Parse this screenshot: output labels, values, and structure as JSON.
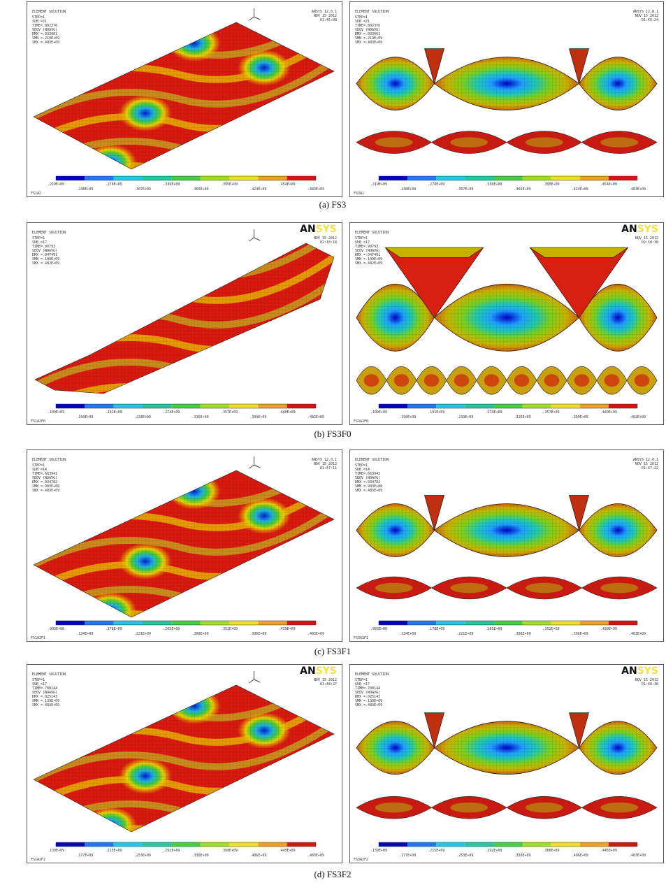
{
  "figure": {
    "rows": [
      {
        "caption": "(a) FS3",
        "panels": [
          {
            "title": "ELEMENT SOLUTION",
            "info": [
              "STEP=1",
              "SUB =21",
              "TIME=.802376",
              "SEQV (NOAVG)",
              "DMX =.033061",
              "SMN =.219E+09",
              "SMX =.483E+09"
            ],
            "stamp": [
              "ANSYS 12.0.1",
              "NOV 15 2012",
              "01:45:09"
            ],
            "footer": "FS1A2",
            "legend": [
              ".219E+09",
              ".248E+09",
              ".278E+09",
              ".307E+09",
              ".336E+09",
              ".366E+09",
              ".395E+09",
              ".424E+09",
              ".454E+09",
              ".483E+09"
            ]
          },
          {
            "title": "ELEMENT SOLUTION",
            "info": [
              "STEP=1",
              "SUB =21",
              "TIME=.802376",
              "SEQV (NOAVG)",
              "DMX =.033061",
              "SMN =.219E+09",
              "SMX =.483E+09"
            ],
            "stamp": [
              "ANSYS 12.0.1",
              "NOV 15 2012",
              "01:45:24"
            ],
            "footer": "FS3A2",
            "legend": [
              ".219E+09",
              ".248E+09",
              ".278E+09",
              ".307E+09",
              ".336E+09",
              ".366E+09",
              ".395E+09",
              ".424E+09",
              ".454E+09",
              ".483E+09"
            ]
          }
        ]
      },
      {
        "caption": "(b) FS3F0",
        "panels": [
          {
            "title": "ELEMENT SOLUTION",
            "info": [
              "STEP=1",
              "SUB =17",
              "TIME=.90793",
              "SEQV (NOAVG)",
              "DMX =.047491",
              "SMN =.109E+09",
              "SMX =.482E+09"
            ],
            "logo": [
              "AN",
              "SYS"
            ],
            "stamp": [
              "NOV 15 2012",
              "02:18:18"
            ],
            "footer": "FS1A2F0",
            "legend": [
              ".109E+09",
              ".150E+09",
              ".191E+09",
              ".233E+09",
              ".274E+09",
              ".316E+09",
              ".357E+09",
              ".399E+09",
              ".440E+09",
              ".482E+09"
            ]
          },
          {
            "title": "ELEMENT SOLUTION",
            "info": [
              "STEP=1",
              "SUB =17",
              "TIME=.90793",
              "SEQV (NOAVG)",
              "DMX =.047491",
              "SMN =.109E+09",
              "SMX =.482E+09"
            ],
            "logo": [
              "AN",
              "SYS"
            ],
            "stamp": [
              "NOV 15 2012",
              "02:18:38"
            ],
            "footer": "FS3A2F0",
            "legend": [
              ".109E+09",
              ".150E+09",
              ".191E+09",
              ".233E+09",
              ".274E+09",
              ".316E+09",
              ".357E+09",
              ".399E+09",
              ".440E+09",
              ".482E+09"
            ]
          }
        ]
      },
      {
        "caption": "(c) FS3F1",
        "panels": [
          {
            "title": "ELEMENT SOLUTION",
            "info": [
              "STEP=1",
              "SUB =14",
              "TIME=.663941",
              "SEQV (NOAVG)",
              "DMX =.034782",
              "SMN =.903E+08",
              "SMX =.483E+09"
            ],
            "stamp": [
              "ANSYS 12.0.1",
              "NOV 15 2012",
              "01:47:11"
            ],
            "footer": "FS1A2F1",
            "legend": [
              ".903E+08",
              ".134E+09",
              ".178E+09",
              ".221E+09",
              ".265E+09",
              ".308E+09",
              ".352E+09",
              ".396E+09",
              ".439E+09",
              ".483E+09"
            ]
          },
          {
            "title": "ELEMENT SOLUTION",
            "info": [
              "STEP=1",
              "SUB =14",
              "TIME=.663941",
              "SEQV (NOAVG)",
              "DMX =.034782",
              "SMN =.903E+08",
              "SMX =.483E+09"
            ],
            "stamp": [
              "ANSYS 12.0.1",
              "NOV 15 2012",
              "01:47:22"
            ],
            "footer": "FS3A2F1",
            "legend": [
              ".903E+08",
              ".134E+09",
              ".178E+09",
              ".221E+09",
              ".265E+09",
              ".308E+09",
              ".352E+09",
              ".396E+09",
              ".439E+09",
              ".483E+09"
            ]
          }
        ]
      },
      {
        "caption": "(d) FS3F2",
        "panels": [
          {
            "title": "ELEMENT SOLUTION",
            "info": [
              "STEP=1",
              "SUB =17",
              "TIME=.708144",
              "SEQV (NOAVG)",
              "DMX =.025143",
              "SMN =.139E+09",
              "SMX =.483E+09"
            ],
            "logo": [
              "AN",
              "SYS"
            ],
            "stamp": [
              "NOV 15 2012",
              "01:48:27"
            ],
            "footer": "FS1A2F2",
            "legend": [
              ".139E+09",
              ".177E+09",
              ".215E+09",
              ".253E+09",
              ".292E+09",
              ".330E+09",
              ".368E+09",
              ".406E+09",
              ".445E+09",
              ".483E+09"
            ]
          },
          {
            "title": "ELEMENT SOLUTION",
            "info": [
              "STEP=1",
              "SUB =17",
              "TIME=.708144",
              "SEQV (NOAVG)",
              "DMX =.025143",
              "SMN =.139E+09",
              "SMX =.483E+09"
            ],
            "logo": [
              "AN",
              "SYS"
            ],
            "stamp": [
              "NOV 15 2012",
              "01:48:38"
            ],
            "footer": "FS3A2F2",
            "legend": [
              ".139E+09",
              ".177E+09",
              ".215E+09",
              ".253E+09",
              ".292E+09",
              ".330E+09",
              ".368E+09",
              ".406E+09",
              ".445E+09",
              ".483E+09"
            ]
          }
        ]
      }
    ]
  }
}
